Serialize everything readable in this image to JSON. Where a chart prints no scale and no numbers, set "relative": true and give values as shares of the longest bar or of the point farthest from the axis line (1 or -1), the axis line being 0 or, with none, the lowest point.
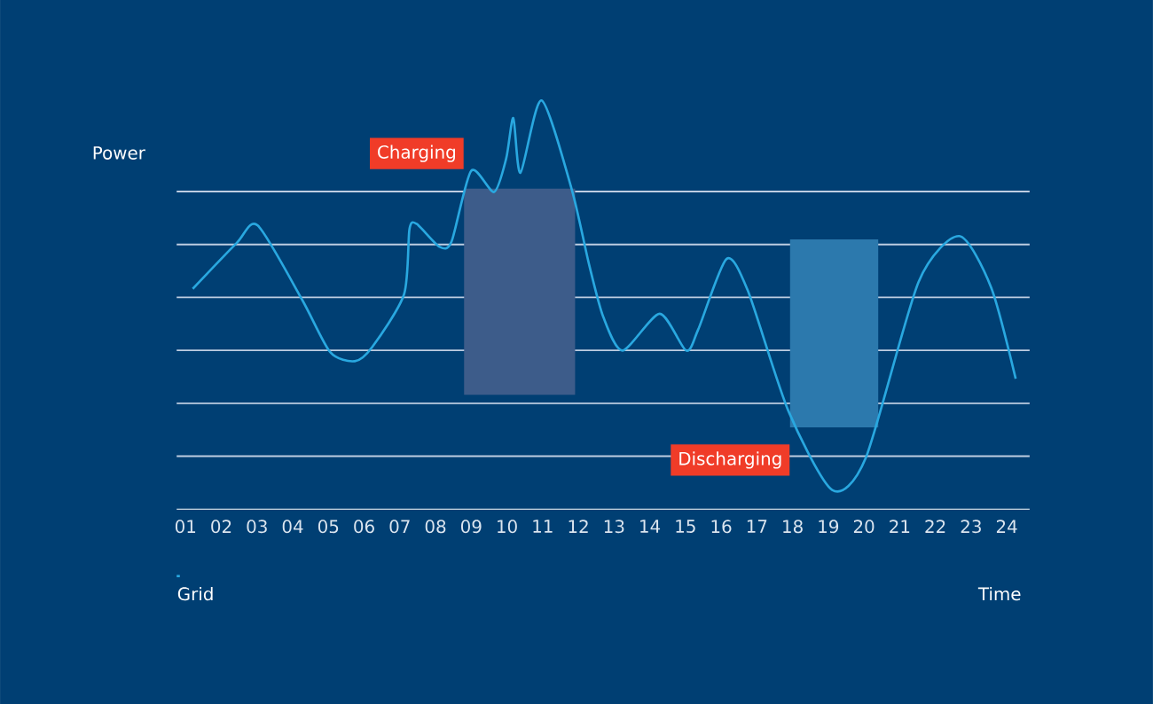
{
  "chart_data": {
    "type": "line",
    "relative": true,
    "xlabel": "Time",
    "ylabel": "Power",
    "xlim": [
      0.75,
      24.64
    ],
    "xticks": [
      {
        "value": 1,
        "label": "01"
      },
      {
        "value": 2,
        "label": "02"
      },
      {
        "value": 3,
        "label": "03"
      },
      {
        "value": 4,
        "label": "04"
      },
      {
        "value": 5,
        "label": "05"
      },
      {
        "value": 6,
        "label": "06"
      },
      {
        "value": 7,
        "label": "07"
      },
      {
        "value": 8,
        "label": "08"
      },
      {
        "value": 9,
        "label": "09"
      },
      {
        "value": 10,
        "label": "10"
      },
      {
        "value": 11,
        "label": "11"
      },
      {
        "value": 12,
        "label": "12"
      },
      {
        "value": 13,
        "label": "13"
      },
      {
        "value": 14,
        "label": "14"
      },
      {
        "value": 15,
        "label": "15"
      },
      {
        "value": 16,
        "label": "16"
      },
      {
        "value": 17,
        "label": "17"
      },
      {
        "value": 18,
        "label": "18"
      },
      {
        "value": 19,
        "label": "19"
      },
      {
        "value": 20,
        "label": "20"
      },
      {
        "value": 21,
        "label": "21"
      },
      {
        "value": 22,
        "label": "22"
      },
      {
        "value": 23,
        "label": "23"
      },
      {
        "value": 24,
        "label": "24"
      }
    ],
    "grid": "y",
    "tick_labels": "x",
    "legend": "bottom left",
    "marker": "none",
    "line_style": "solid",
    "series": [
      {
        "name": "Grid",
        "color": "#29a8e0",
        "x": [
          1.2,
          2.43,
          3.02,
          4.26,
          5.05,
          5.74,
          6.23,
          7.12,
          7.27,
          7.47,
          8.11,
          8.45,
          9.0,
          9.64,
          9.98,
          10.18,
          10.38,
          10.97,
          11.81,
          12.3,
          12.7,
          13.24,
          14.28,
          15.02,
          15.36,
          16.15,
          16.75,
          17.88,
          19.11,
          20.05,
          21.53,
          22.67,
          23.56,
          24.25
        ],
        "values": [
          0.539,
          0.651,
          0.694,
          0.513,
          0.384,
          0.362,
          0.397,
          0.526,
          0.685,
          0.698,
          0.642,
          0.655,
          0.828,
          0.776,
          0.858,
          0.957,
          0.823,
          1.0,
          0.784,
          0.599,
          0.47,
          0.388,
          0.478,
          0.388,
          0.44,
          0.612,
          0.534,
          0.241,
          0.047,
          0.125,
          0.556,
          0.668,
          0.543,
          0.319
        ]
      }
    ],
    "bands": [
      {
        "axis": "x",
        "from": 8.8,
        "to": 11.91,
        "label": "Charging",
        "color": "#3d5c8a"
      },
      {
        "axis": "x",
        "from": 17.93,
        "to": 20.4,
        "label": "Discharging",
        "color": "#2c79ad"
      }
    ]
  }
}
